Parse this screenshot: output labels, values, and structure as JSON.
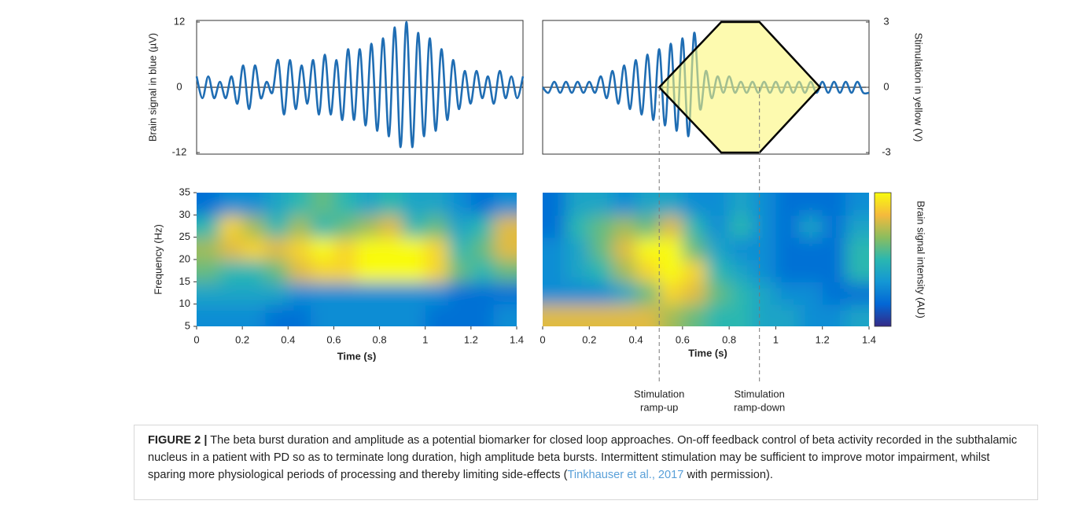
{
  "chart_data": [
    {
      "type": "line",
      "ylabel": "Brain signal in blue (µV)",
      "xlim": [
        0,
        1.4
      ],
      "ylim": [
        -12,
        12
      ],
      "yticks": [
        -12,
        0,
        12
      ],
      "x": [
        0,
        0.025,
        0.05,
        0.075,
        0.1,
        0.125,
        0.15,
        0.175,
        0.2,
        0.225,
        0.25,
        0.275,
        0.3,
        0.325,
        0.35,
        0.375,
        0.4,
        0.425,
        0.45,
        0.475,
        0.5,
        0.525,
        0.55,
        0.575,
        0.6,
        0.625,
        0.65,
        0.675,
        0.7,
        0.725,
        0.75,
        0.775,
        0.8,
        0.825,
        0.85,
        0.875,
        0.9,
        0.925,
        0.95,
        0.975,
        1,
        1.025,
        1.05,
        1.075,
        1.1,
        1.125,
        1.15,
        1.175,
        1.2,
        1.225,
        1.25,
        1.275,
        1.3,
        1.325,
        1.35,
        1.375,
        1.4
      ],
      "series": [
        {
          "color": "#1f6db3",
          "values": [
            2,
            -2,
            2,
            -2,
            1,
            -2,
            2,
            -3,
            4,
            -4,
            4,
            -2,
            1,
            -1,
            5,
            -5,
            5,
            -4,
            4,
            -3,
            5,
            -5,
            6,
            -5,
            5,
            -6,
            7,
            -6,
            7,
            -7,
            8,
            -8,
            9,
            -9,
            11,
            -11,
            12,
            -11,
            10,
            -9,
            9,
            -8,
            7,
            -6,
            5,
            -4,
            3,
            -3,
            3,
            -2,
            2,
            -3,
            3,
            -2,
            2,
            -2,
            2
          ]
        }
      ]
    },
    {
      "type": "line",
      "y2label": "Stimulation in yellow (V)",
      "xlim": [
        0,
        1.4
      ],
      "ylim": [
        -12,
        12
      ],
      "y2lim": [
        -3,
        3
      ],
      "y2ticks": [
        -3,
        0,
        3
      ],
      "x": [
        0,
        0.025,
        0.05,
        0.075,
        0.1,
        0.125,
        0.15,
        0.175,
        0.2,
        0.225,
        0.25,
        0.275,
        0.3,
        0.325,
        0.35,
        0.375,
        0.4,
        0.425,
        0.45,
        0.475,
        0.5,
        0.525,
        0.55,
        0.575,
        0.6,
        0.625,
        0.65,
        0.675,
        0.7,
        0.725,
        0.75,
        0.775,
        0.8,
        0.825,
        0.85,
        0.875,
        0.9,
        0.925,
        0.95,
        0.975,
        1,
        1.025,
        1.05,
        1.075,
        1.1,
        1.125,
        1.15,
        1.175,
        1.2,
        1.225,
        1.25,
        1.275,
        1.3,
        1.325,
        1.35,
        1.375,
        1.4
      ],
      "series": [
        {
          "color": "#1f6db3",
          "values": [
            0,
            -1,
            1,
            -1,
            1,
            -1,
            1,
            -1,
            1,
            -1,
            2,
            -2,
            3,
            -3,
            4,
            -4,
            5,
            -5,
            6,
            -6,
            7,
            -7,
            8,
            -8,
            9,
            -9,
            10,
            -4,
            3,
            -2,
            2,
            -1,
            2,
            -1,
            1,
            -1,
            1,
            -1,
            1,
            -1,
            1,
            -1,
            1,
            -1,
            1,
            -1,
            1,
            -1,
            1,
            -1,
            1,
            -1,
            1,
            -1,
            1,
            -1,
            -1
          ]
        },
        {
          "color": "#fbf77a",
          "axis": "y2",
          "x": [
            0.5,
            0.766,
            0.93,
            1.19,
            0.93,
            0.766,
            0.5
          ],
          "values": [
            0,
            3,
            3,
            0,
            -3,
            -3,
            0
          ]
        }
      ]
    },
    {
      "type": "heatmap",
      "xlabel": "Time (s)",
      "ylabel": "Frequency (Hz)",
      "xlim": [
        0,
        1.4
      ],
      "ylim": [
        5,
        35
      ],
      "xticks": [
        0,
        0.2,
        0.4,
        0.6,
        0.8,
        1,
        1.2,
        1.4
      ],
      "yticks": [
        5,
        10,
        15,
        20,
        25,
        30,
        35
      ],
      "colormap": [
        "#352a87",
        "#0367d5",
        "#1497d4",
        "#2ab7b0",
        "#8cbd5e",
        "#f5ba3c",
        "#f9fb0e"
      ],
      "x": [
        0.05,
        0.15,
        0.25,
        0.35,
        0.45,
        0.55,
        0.65,
        0.75,
        0.85,
        0.95,
        1.05,
        1.15,
        1.25,
        1.35
      ],
      "y": [
        7.5,
        12.5,
        17.5,
        22.5,
        27.5,
        32.5
      ],
      "z": [
        [
          0.3,
          0.3,
          0.3,
          0.2,
          0.2,
          0.3,
          0.3,
          0.3,
          0.3,
          0.3,
          0.2,
          0.2,
          0.2,
          0.3
        ],
        [
          0.4,
          0.4,
          0.4,
          0.4,
          0.3,
          0.3,
          0.3,
          0.3,
          0.3,
          0.3,
          0.3,
          0.2,
          0.2,
          0.2
        ],
        [
          0.6,
          0.5,
          0.5,
          0.6,
          0.8,
          0.9,
          0.9,
          1,
          1,
          1,
          0.9,
          0.6,
          0.5,
          0.6
        ],
        [
          0.7,
          0.8,
          0.9,
          0.8,
          0.9,
          1,
          0.9,
          1,
          1,
          1,
          0.9,
          0.5,
          0.6,
          0.8
        ],
        [
          0.5,
          0.9,
          0.7,
          0.5,
          0.7,
          0.5,
          0.6,
          0.7,
          0.8,
          0.5,
          0.6,
          0.4,
          0.5,
          0.8
        ],
        [
          0.2,
          0.3,
          0.3,
          0.4,
          0.5,
          0.6,
          0.5,
          0.4,
          0.5,
          0.4,
          0.4,
          0.3,
          0.2,
          0.3
        ]
      ]
    },
    {
      "type": "heatmap",
      "xlabel": "Time (s)",
      "colorbar_label": "Brain signal intensity (AU)",
      "xlim": [
        0,
        1.4
      ],
      "ylim": [
        5,
        35
      ],
      "xticks": [
        0,
        0.2,
        0.4,
        0.6,
        0.8,
        1,
        1.2,
        1.4
      ],
      "colormap": [
        "#352a87",
        "#0367d5",
        "#1497d4",
        "#2ab7b0",
        "#8cbd5e",
        "#f5ba3c",
        "#f9fb0e"
      ],
      "x": [
        0.05,
        0.15,
        0.25,
        0.35,
        0.45,
        0.55,
        0.65,
        0.75,
        0.85,
        0.95,
        1.05,
        1.15,
        1.25,
        1.35
      ],
      "y": [
        7.5,
        12.5,
        17.5,
        22.5,
        27.5,
        32.5
      ],
      "z": [
        [
          0.8,
          0.8,
          0.8,
          0.8,
          0.8,
          0.7,
          0.6,
          0.5,
          0.5,
          0.4,
          0.4,
          0.3,
          0.3,
          0.4
        ],
        [
          0.3,
          0.3,
          0.3,
          0.4,
          0.6,
          0.9,
          0.8,
          0.6,
          0.5,
          0.4,
          0.3,
          0.3,
          0.2,
          0.2
        ],
        [
          0.3,
          0.4,
          0.5,
          0.7,
          0.9,
          1,
          0.9,
          0.5,
          0.4,
          0.3,
          0.2,
          0.2,
          0.2,
          0.5
        ],
        [
          0.3,
          0.4,
          0.6,
          0.8,
          1,
          1,
          0.6,
          0.4,
          0.3,
          0.3,
          0.2,
          0.2,
          0.2,
          0.5
        ],
        [
          0.2,
          0.5,
          0.6,
          0.7,
          0.6,
          0.8,
          0.5,
          0.3,
          0.5,
          0.3,
          0.2,
          0.4,
          0.2,
          0.4
        ],
        [
          0.2,
          0.4,
          0.4,
          0.3,
          0.4,
          0.4,
          0.3,
          0.3,
          0.4,
          0.3,
          0.2,
          0.2,
          0.2,
          0.3
        ]
      ]
    }
  ],
  "annotations": [
    {
      "x": 0.5,
      "lines": [
        "Stimulation",
        "ramp-up"
      ]
    },
    {
      "x": 0.93,
      "lines": [
        "Stimulation",
        "ramp-down"
      ]
    }
  ],
  "caption": {
    "label": "FIGURE 2 |",
    "text": "The beta burst duration and amplitude as a potential biomarker for closed loop approaches. On-off feedback control of beta activity recorded in the subthalamic nucleus in a patient with PD so as to terminate long duration, high amplitude beta bursts. Intermittent stimulation may be sufficient to improve motor impairment, whilst sparing more physiological periods of processing and thereby limiting side-effects (",
    "citation": "Tinkhauser et al., 2017",
    "after": " with permission)."
  }
}
